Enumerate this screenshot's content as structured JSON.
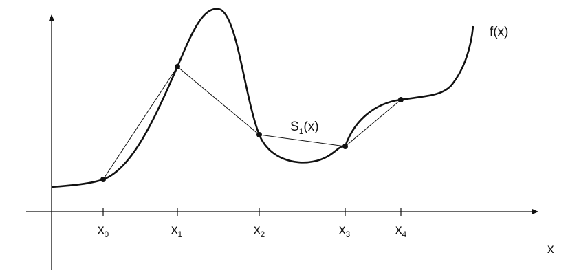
{
  "diagram": {
    "function_label": "f(x)",
    "spline_label": {
      "base": "S",
      "sub": "1",
      "rest": "(x)"
    },
    "x_axis_label": "x",
    "nodes": [
      {
        "base": "x",
        "sub": "0"
      },
      {
        "base": "x",
        "sub": "1"
      },
      {
        "base": "x",
        "sub": "2"
      },
      {
        "base": "x",
        "sub": "3"
      },
      {
        "base": "x",
        "sub": "4"
      }
    ],
    "colors": {
      "ink": "#111111",
      "background": "#ffffff"
    }
  }
}
